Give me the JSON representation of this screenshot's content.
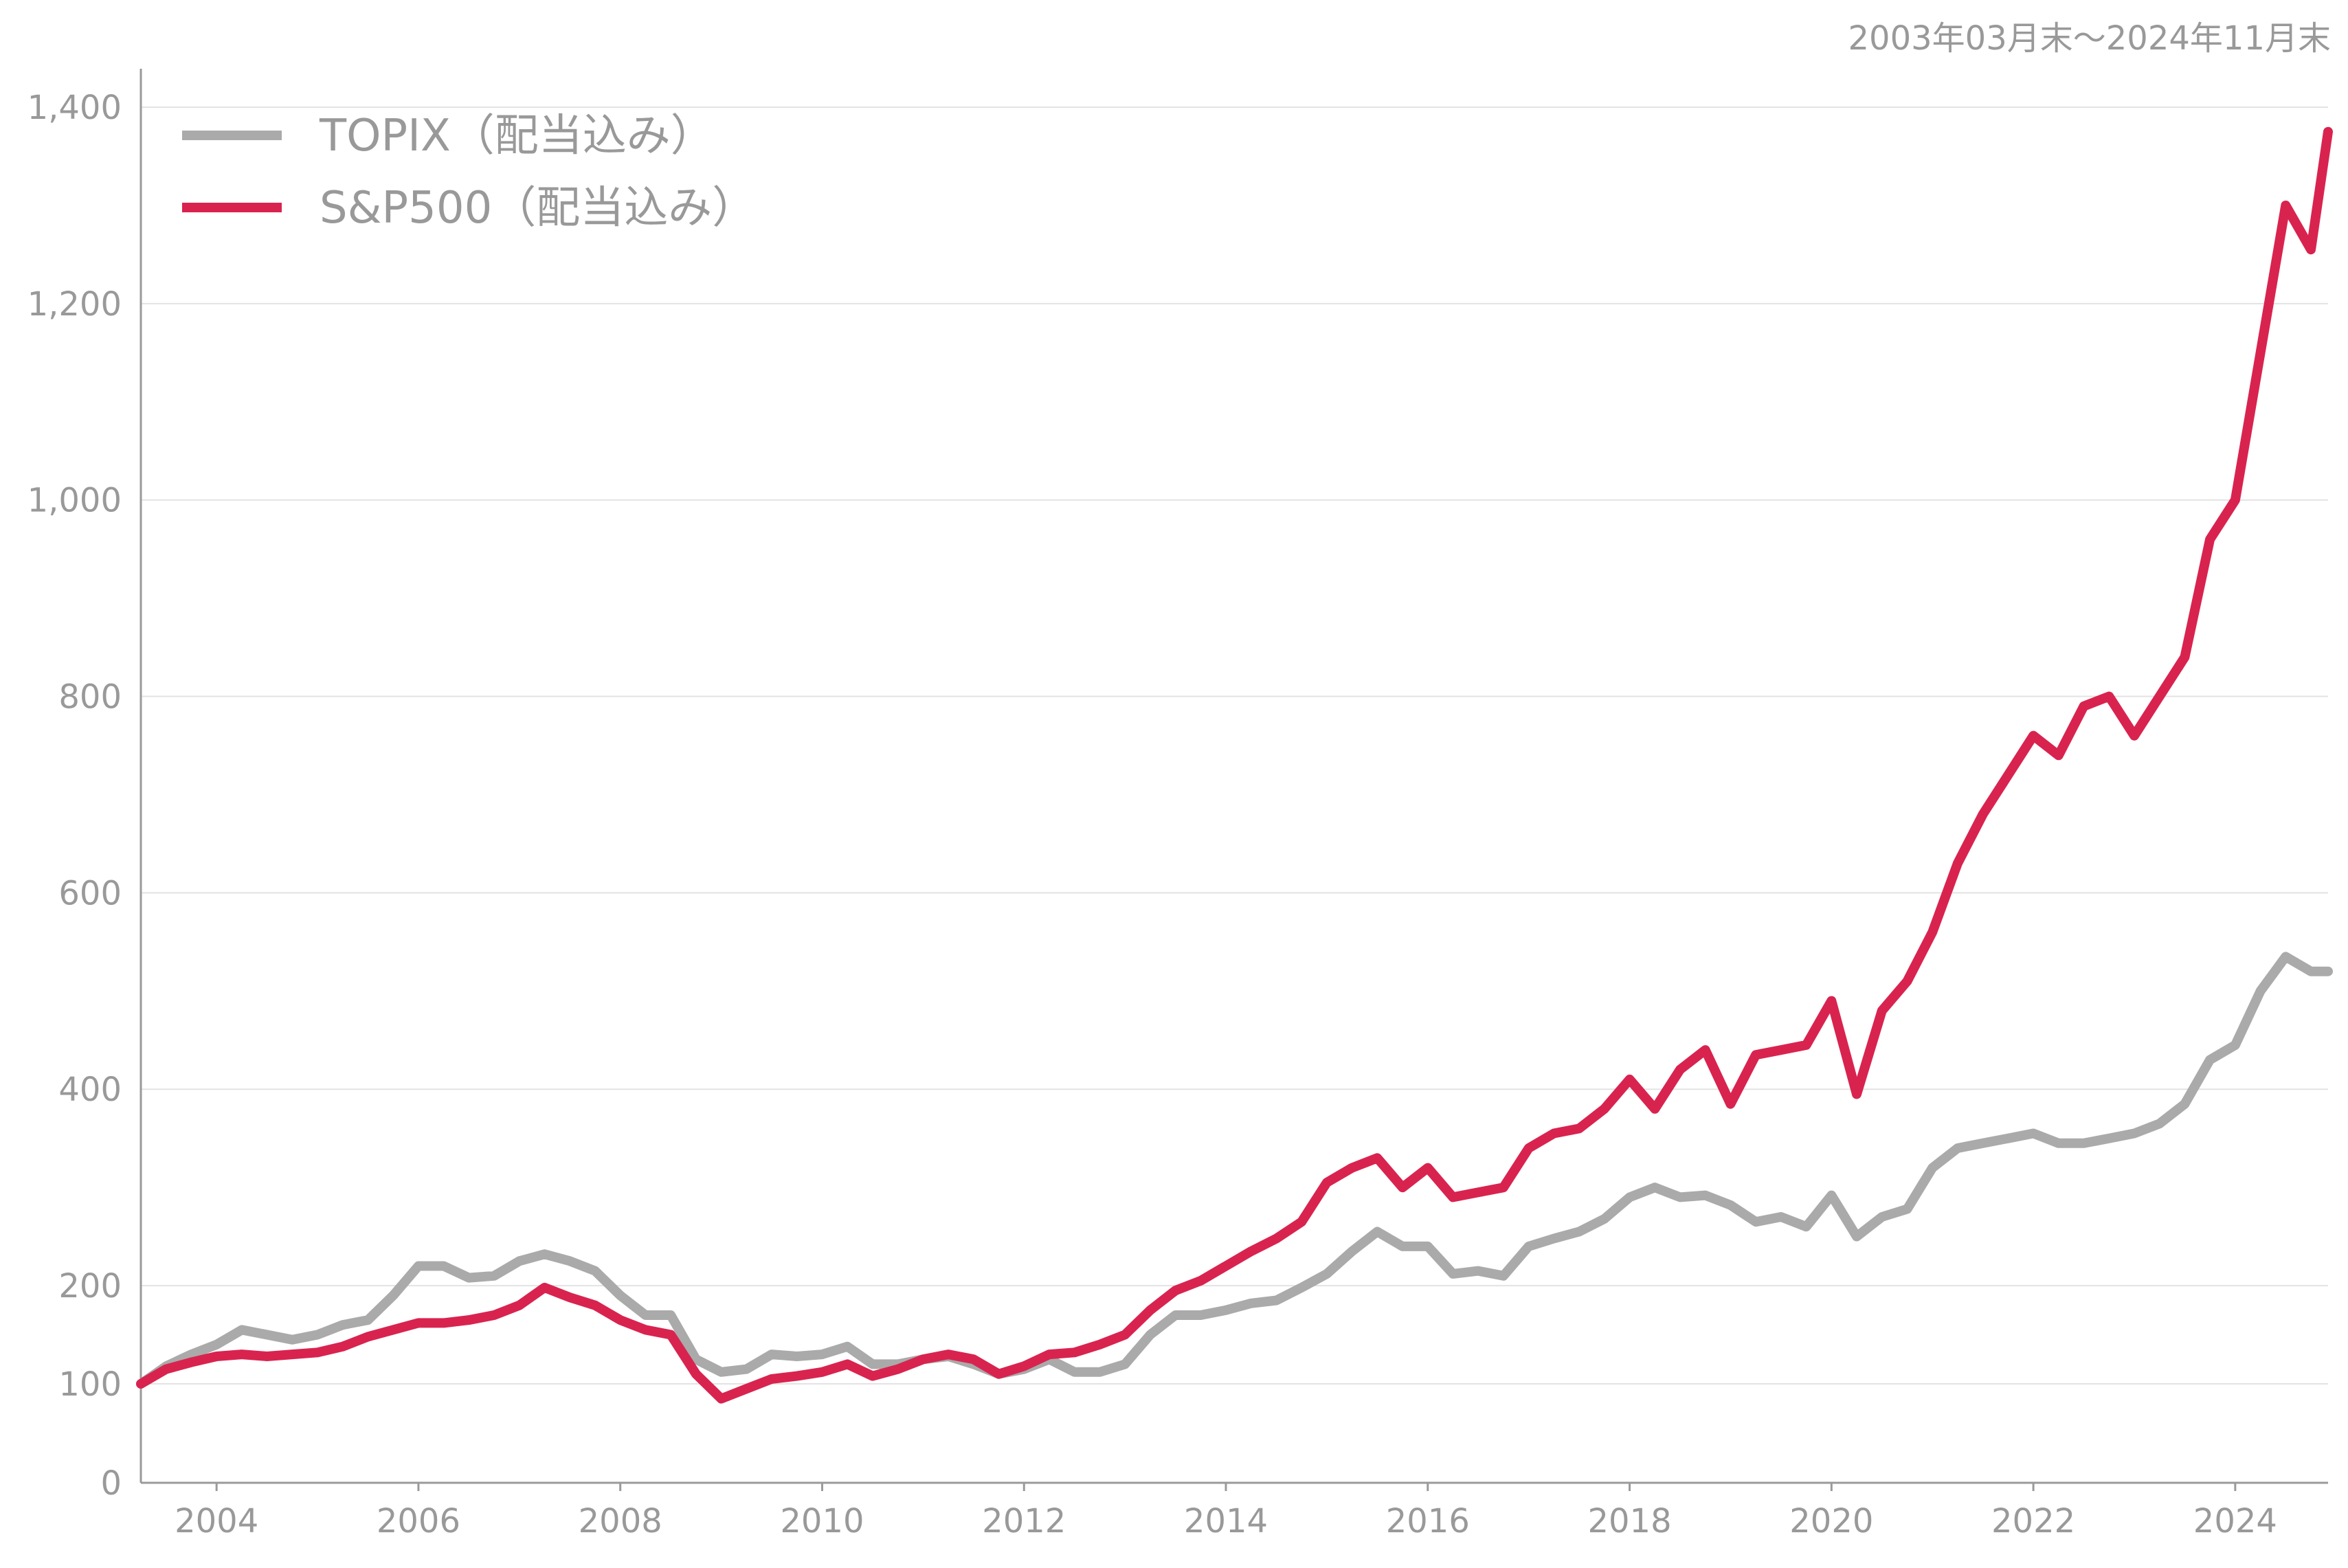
{
  "period_label": "2003年03月末〜2024年11月末",
  "chart_data": {
    "type": "line",
    "title": "",
    "xlabel": "",
    "ylabel": "",
    "x_range": [
      2003.25,
      2024.92
    ],
    "ylim": [
      0,
      1400
    ],
    "y_ticks": [
      0,
      100,
      200,
      400,
      600,
      800,
      1000,
      1200,
      1400
    ],
    "y_tick_labels": [
      "0",
      "100",
      "200",
      "400",
      "600",
      "800",
      "1,000",
      "1,200",
      "1,400"
    ],
    "x_ticks": [
      2004,
      2006,
      2008,
      2010,
      2012,
      2014,
      2016,
      2018,
      2020,
      2022,
      2024
    ],
    "x_tick_labels": [
      "2004",
      "2006",
      "2008",
      "2010",
      "2012",
      "2014",
      "2016",
      "2018",
      "2020",
      "2022",
      "2024"
    ],
    "grid": "horizontal",
    "legend_position": "top-left",
    "series": [
      {
        "name": "TOPIX（配当込み）",
        "color": "#aaaaaa",
        "x": [
          2003.25,
          2003.5,
          2003.75,
          2004.0,
          2004.25,
          2004.5,
          2004.75,
          2005.0,
          2005.25,
          2005.5,
          2005.75,
          2006.0,
          2006.25,
          2006.5,
          2006.75,
          2007.0,
          2007.25,
          2007.5,
          2007.75,
          2008.0,
          2008.25,
          2008.5,
          2008.75,
          2009.0,
          2009.25,
          2009.5,
          2009.75,
          2010.0,
          2010.25,
          2010.5,
          2010.75,
          2011.0,
          2011.25,
          2011.5,
          2011.75,
          2012.0,
          2012.25,
          2012.5,
          2012.75,
          2013.0,
          2013.25,
          2013.5,
          2013.75,
          2014.0,
          2014.25,
          2014.5,
          2014.75,
          2015.0,
          2015.25,
          2015.5,
          2015.75,
          2016.0,
          2016.25,
          2016.5,
          2016.75,
          2017.0,
          2017.25,
          2017.5,
          2017.75,
          2018.0,
          2018.25,
          2018.5,
          2018.75,
          2019.0,
          2019.25,
          2019.5,
          2019.75,
          2020.0,
          2020.25,
          2020.5,
          2020.75,
          2021.0,
          2021.25,
          2021.5,
          2021.75,
          2022.0,
          2022.25,
          2022.5,
          2022.75,
          2023.0,
          2023.25,
          2023.5,
          2023.75,
          2024.0,
          2024.25,
          2024.5,
          2024.75,
          2024.92
        ],
        "values": [
          100,
          118,
          130,
          140,
          155,
          150,
          145,
          150,
          160,
          165,
          190,
          220,
          220,
          208,
          210,
          225,
          232,
          225,
          215,
          190,
          170,
          170,
          125,
          112,
          115,
          130,
          128,
          130,
          138,
          120,
          120,
          125,
          128,
          120,
          110,
          115,
          125,
          112,
          112,
          120,
          150,
          170,
          170,
          175,
          182,
          185,
          198,
          212,
          235,
          255,
          240,
          240,
          212,
          215,
          210,
          240,
          248,
          255,
          268,
          290,
          300,
          290,
          292,
          282,
          265,
          270,
          260,
          292,
          250,
          270,
          278,
          320,
          340,
          345,
          350,
          355,
          345,
          345,
          350,
          355,
          365,
          385,
          430,
          445,
          500,
          535,
          520,
          520
        ]
      },
      {
        "name": "S&P500（配当込み）",
        "color": "#d9234f",
        "x": [
          2003.25,
          2003.5,
          2003.75,
          2004.0,
          2004.25,
          2004.5,
          2004.75,
          2005.0,
          2005.25,
          2005.5,
          2005.75,
          2006.0,
          2006.25,
          2006.5,
          2006.75,
          2007.0,
          2007.25,
          2007.5,
          2007.75,
          2008.0,
          2008.25,
          2008.5,
          2008.75,
          2009.0,
          2009.25,
          2009.5,
          2009.75,
          2010.0,
          2010.25,
          2010.5,
          2010.75,
          2011.0,
          2011.25,
          2011.5,
          2011.75,
          2012.0,
          2012.25,
          2012.5,
          2012.75,
          2013.0,
          2013.25,
          2013.5,
          2013.75,
          2014.0,
          2014.25,
          2014.5,
          2014.75,
          2015.0,
          2015.25,
          2015.5,
          2015.75,
          2016.0,
          2016.25,
          2016.5,
          2016.75,
          2017.0,
          2017.25,
          2017.5,
          2017.75,
          2018.0,
          2018.25,
          2018.5,
          2018.75,
          2019.0,
          2019.25,
          2019.5,
          2019.75,
          2020.0,
          2020.25,
          2020.5,
          2020.75,
          2021.0,
          2021.25,
          2021.5,
          2021.75,
          2022.0,
          2022.25,
          2022.5,
          2022.75,
          2023.0,
          2023.25,
          2023.5,
          2023.75,
          2024.0,
          2024.25,
          2024.5,
          2024.75,
          2024.92
        ],
        "values": [
          100,
          115,
          122,
          128,
          130,
          128,
          130,
          132,
          138,
          148,
          155,
          162,
          162,
          165,
          170,
          180,
          198,
          188,
          180,
          165,
          155,
          150,
          110,
          85,
          95,
          105,
          108,
          112,
          120,
          108,
          115,
          125,
          130,
          125,
          110,
          118,
          130,
          132,
          140,
          150,
          175,
          195,
          205,
          220,
          235,
          248,
          265,
          305,
          320,
          330,
          300,
          320,
          290,
          295,
          300,
          340,
          355,
          360,
          380,
          410,
          380,
          420,
          440,
          385,
          435,
          440,
          445,
          490,
          395,
          480,
          510,
          560,
          630,
          680,
          720,
          760,
          740,
          790,
          800,
          760,
          800,
          840,
          960,
          1000,
          1150,
          1300,
          1255,
          1375
        ]
      }
    ]
  }
}
